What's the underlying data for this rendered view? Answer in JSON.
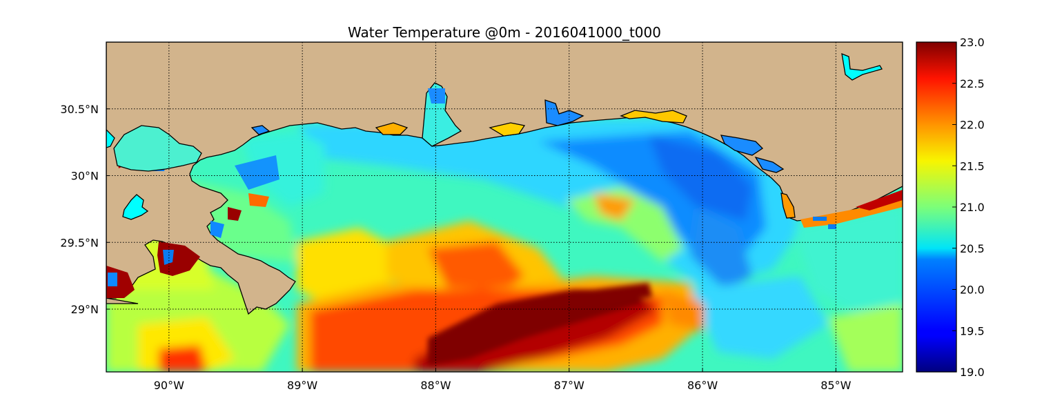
{
  "chart_data": {
    "type": "heatmap",
    "title": "Water Temperature @0m - 2016041000_t000",
    "colormap": "jet",
    "land_color": "#d2b48c",
    "lake_color": "#00ffff",
    "x_ticks": [
      {
        "value": -90,
        "label": "90°W"
      },
      {
        "value": -89,
        "label": "89°W"
      },
      {
        "value": -88,
        "label": "88°W"
      },
      {
        "value": -87,
        "label": "87°W"
      },
      {
        "value": -86,
        "label": "86°W"
      },
      {
        "value": -85,
        "label": "85°W"
      }
    ],
    "y_ticks": [
      {
        "value": 30.5,
        "label": "30.5°N"
      },
      {
        "value": 30.0,
        "label": "30°N"
      },
      {
        "value": 29.5,
        "label": "29.5°N"
      },
      {
        "value": 29.0,
        "label": "29°N"
      }
    ],
    "xlim": [
      -90.47,
      -84.5
    ],
    "ylim": [
      28.53,
      31.0
    ],
    "grid": true,
    "colorbar": {
      "range": [
        19.0,
        23.0
      ],
      "ticks": [
        {
          "value": 23.0,
          "label": "23.0"
        },
        {
          "value": 22.5,
          "label": "22.5"
        },
        {
          "value": 22.0,
          "label": "22.0"
        },
        {
          "value": 21.5,
          "label": "21.5"
        },
        {
          "value": 21.0,
          "label": "21.0"
        },
        {
          "value": 20.5,
          "label": "20.5"
        },
        {
          "value": 20.0,
          "label": "20.0"
        },
        {
          "value": 19.5,
          "label": "19.5"
        },
        {
          "value": 19.0,
          "label": "19.0"
        }
      ]
    }
  }
}
